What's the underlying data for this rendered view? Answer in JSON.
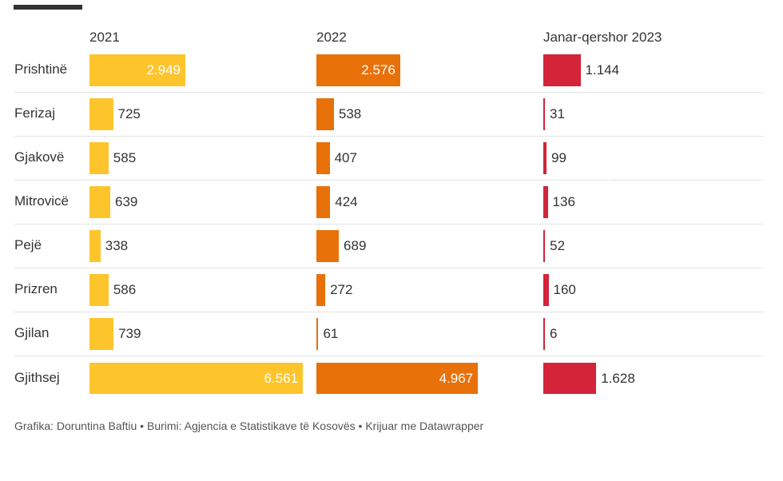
{
  "chart_data": {
    "type": "bar",
    "categories": [
      "Prishtinë",
      "Ferizaj",
      "Gjakovë",
      "Mitrovicë",
      "Pejë",
      "Prizren",
      "Gjilan",
      "Gjithsej"
    ],
    "series": [
      {
        "name": "2021",
        "color": "#fdc42c",
        "values": [
          2949,
          725,
          585,
          639,
          338,
          586,
          739,
          6561
        ],
        "labels": [
          "2.949",
          "725",
          "585",
          "639",
          "338",
          "586",
          "739",
          "6.561"
        ]
      },
      {
        "name": "2022",
        "color": "#e8710a",
        "values": [
          2576,
          538,
          407,
          424,
          689,
          272,
          61,
          4967
        ],
        "labels": [
          "2.576",
          "538",
          "407",
          "424",
          "689",
          "272",
          "61",
          "4.967"
        ]
      },
      {
        "name": "Janar-qershor 2023",
        "color": "#d3243a",
        "values": [
          1144,
          31,
          99,
          136,
          52,
          160,
          6,
          1628
        ],
        "labels": [
          "1.144",
          "31",
          "99",
          "136",
          "52",
          "160",
          "6",
          "1.628"
        ]
      }
    ],
    "total_category": "Gjithsej"
  },
  "footer": "Grafika: Doruntina Baftiu • Burimi: Agjencia e Statistikave të Kosovës • Krijuar me Datawrapper"
}
